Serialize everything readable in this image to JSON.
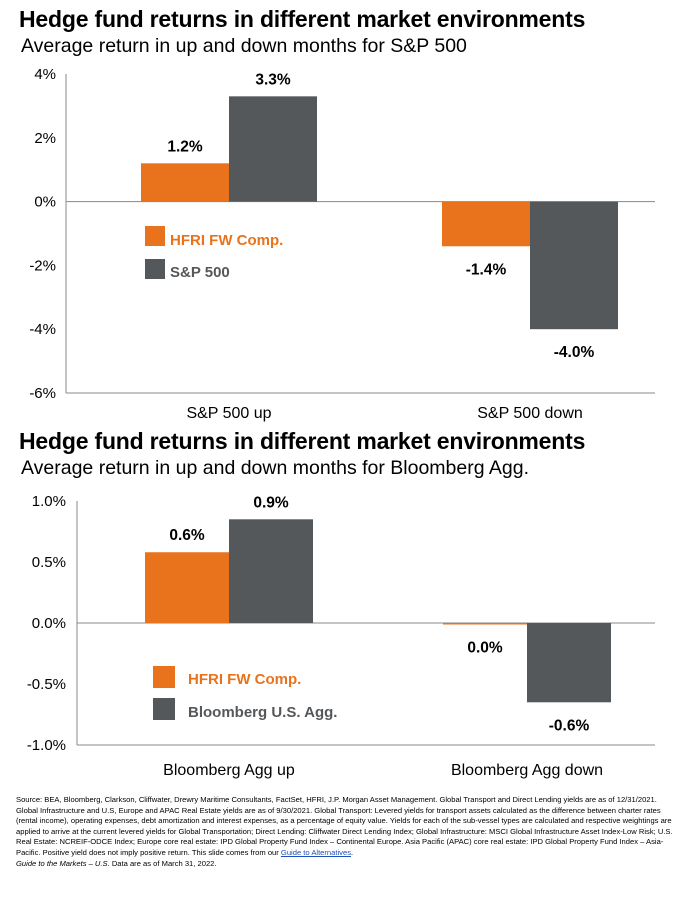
{
  "colors": {
    "series_1": "#E8731C",
    "series_2": "#55585B",
    "axis": "#888888"
  },
  "chart_data": [
    {
      "type": "bar",
      "title": "Hedge fund returns in different market environments",
      "subtitle": "Average return in up and down months for S&P 500",
      "categories": [
        "S&P 500 up",
        "S&P 500 down"
      ],
      "series": [
        {
          "name": "HFRI FW Comp.",
          "values": [
            1.2,
            -1.4
          ],
          "labels": [
            "1.2%",
            "-1.4%"
          ]
        },
        {
          "name": "S&P 500",
          "values": [
            3.3,
            -4.0
          ],
          "labels": [
            "3.3%",
            "-4.0%"
          ]
        }
      ],
      "ylim": [
        -6,
        4
      ],
      "yticks": [
        4,
        2,
        0,
        -2,
        -4,
        -6
      ],
      "ytick_labels": [
        "4%",
        "2%",
        "0%",
        "-2%",
        "-4%",
        "-6%"
      ],
      "legend_position": "middle-left",
      "grid": false
    },
    {
      "type": "bar",
      "title": "Hedge fund returns in different market environments",
      "subtitle": "Average return in up and down months for Bloomberg Agg.",
      "categories": [
        "Bloomberg Agg up",
        "Bloomberg Agg down"
      ],
      "series": [
        {
          "name": "HFRI FW Comp.",
          "values": [
            0.58,
            -0.01
          ],
          "labels": [
            "0.6%",
            "0.0%"
          ]
        },
        {
          "name": "Bloomberg U.S. Agg.",
          "values": [
            0.85,
            -0.65
          ],
          "labels": [
            "0.9%",
            "-0.6%"
          ]
        }
      ],
      "ylim": [
        -1.0,
        1.0
      ],
      "yticks": [
        1.0,
        0.5,
        0.0,
        -0.5,
        -1.0
      ],
      "ytick_labels": [
        "1.0%",
        "0.5%",
        "0.0%",
        "-0.5%",
        "-1.0%"
      ],
      "legend_position": "bottom-left",
      "grid": false
    }
  ],
  "footnote": {
    "text": "Source: BEA, Bloomberg, Clarkson, Cliffwater, Drewry Maritime Consultants, FactSet, HFRI, J.P. Morgan Asset Management. Global Transport and Direct Lending yields are as of 12/31/2021. Global Infrastructure and U.S, Europe and APAC Real Estate yields are as of 9/30/2021. Global Transport: Levered yields for transport assets calculated as the difference between charter rates (rental income), operating expenses, debt amortization and interest expenses, as a percentage of equity value. Yields for each of the sub-vessel types are calculated and respective weightings are applied to arrive at the current levered yields for Global Transportation; Direct Lending: Cliffwater Direct Lending Index; Global Infrastructure: MSCI Global Infrastructure Asset Index-Low Risk; U.S. Real Estate: NCREIF-ODCE Index; Europe core real estate: IPD Global Property Fund Index – Continental Europe. Asia Pacific (APAC) core real estate: IPD Global Property Fund Index – Asia-Pacific. Positive yield does not imply positive return. This slide comes from our",
    "link": "Guide to Alternatives",
    "link_suffix": ".",
    "guide_italic": "Guide to the Markets – U.S.",
    "guide_rest": " Data are as of March 31, 2022."
  }
}
